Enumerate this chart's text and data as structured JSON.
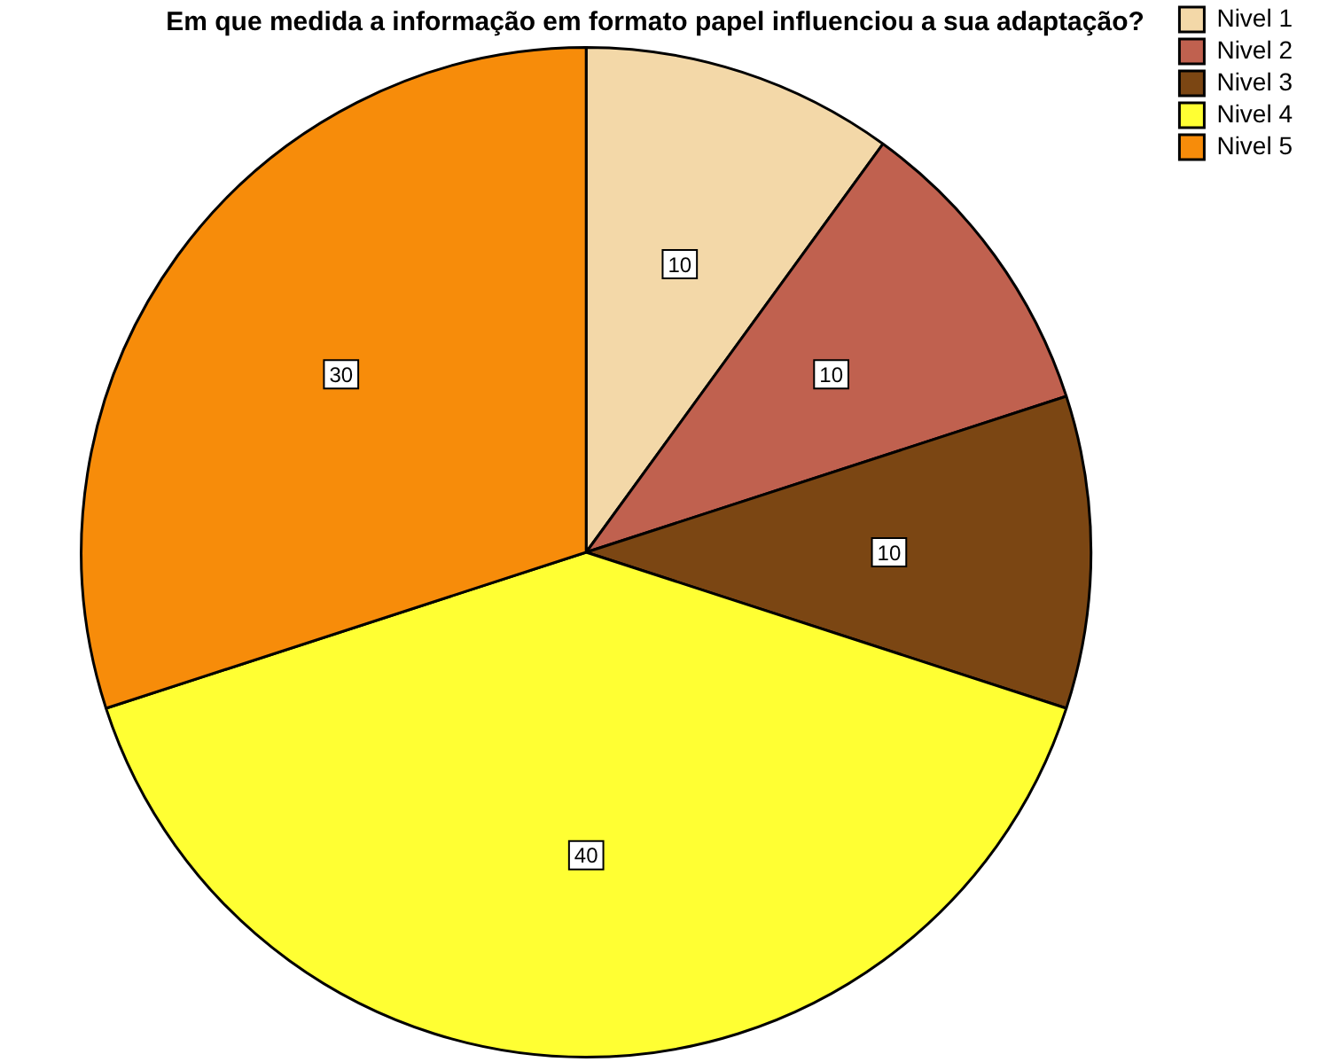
{
  "chart_data": {
    "type": "pie",
    "title": "Em que medida a informação em formato papel influenciou a sua adaptação?",
    "categories": [
      "Nivel 1",
      "Nivel 2",
      "Nivel 3",
      "Nivel 4",
      "Nivel 5"
    ],
    "values": [
      10,
      10,
      10,
      40,
      30
    ],
    "colors": [
      "#f3d8a8",
      "#c0614f",
      "#7b4613",
      "#ffff33",
      "#f78c0a"
    ],
    "data_labels": true,
    "legend": "top right"
  }
}
